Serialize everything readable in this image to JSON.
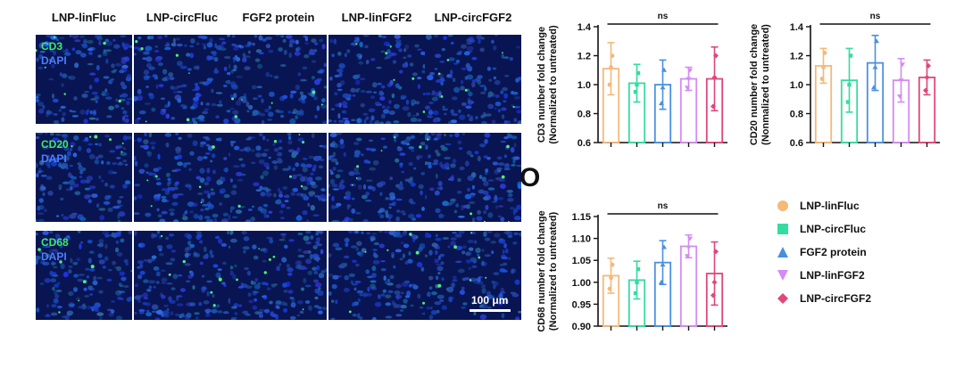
{
  "figure": {
    "columns": [
      "LNP-linFluc",
      "LNP-circFluc",
      "FGF2 protein",
      "LNP-linFGF2",
      "LNP-circFGF2"
    ],
    "rows": [
      {
        "marker": "CD3",
        "stain": "DAPI"
      },
      {
        "marker": "CD20",
        "stain": "DAPI"
      },
      {
        "marker": "CD68",
        "stain": "DAPI"
      }
    ],
    "scale_bar": "100 μm",
    "panel_letter": "O"
  },
  "colors": {
    "LNP-linFluc": "#f5b978",
    "LNP-circFluc": "#35dca0",
    "FGF2 protein": "#4a90e2",
    "LNP-linFGF2": "#d48cf0",
    "LNP-circFGF2": "#e0477a"
  },
  "chart_data": [
    {
      "type": "bar",
      "title": "",
      "ylabel": "CD3 number fold change (Normalized to untreated)",
      "xlabel": "",
      "categories": [
        "LNP-linFluc",
        "LNP-circFluc",
        "FGF2 protein",
        "LNP-linFGF2",
        "LNP-circFGF2"
      ],
      "values": [
        1.11,
        1.01,
        1.0,
        1.04,
        1.04
      ],
      "error": [
        0.18,
        0.13,
        0.17,
        0.08,
        0.22
      ],
      "points": [
        [
          1.0,
          1.12,
          1.2
        ],
        [
          0.95,
          1.0,
          1.08
        ],
        [
          0.87,
          0.98,
          1.1
        ],
        [
          0.98,
          1.04,
          1.1
        ],
        [
          0.85,
          1.05,
          1.2
        ]
      ],
      "ylim": [
        0.6,
        1.4
      ],
      "yticks": [
        "0.6",
        "0.8",
        "1.0",
        "1.2",
        "1.4"
      ],
      "significance": "ns"
    },
    {
      "type": "bar",
      "title": "",
      "ylabel": "CD20 number fold change (Nonmalized to untreated)",
      "xlabel": "",
      "categories": [
        "LNP-linFluc",
        "LNP-circFluc",
        "FGF2 protein",
        "LNP-linFGF2",
        "LNP-circFGF2"
      ],
      "values": [
        1.13,
        1.03,
        1.15,
        1.03,
        1.05
      ],
      "error": [
        0.12,
        0.22,
        0.19,
        0.15,
        0.12
      ],
      "points": [
        [
          1.04,
          1.12,
          1.22
        ],
        [
          0.88,
          1.0,
          1.2
        ],
        [
          0.98,
          1.12,
          1.3
        ],
        [
          0.92,
          1.03,
          1.14
        ],
        [
          0.96,
          1.05,
          1.13
        ]
      ],
      "ylim": [
        0.6,
        1.4
      ],
      "yticks": [
        "0.6",
        "0.8",
        "1.0",
        "1.2",
        "1.4"
      ],
      "significance": "ns"
    },
    {
      "type": "bar",
      "title": "",
      "ylabel": "CD68 number fold change (Normalized to untreated)",
      "xlabel": "",
      "categories": [
        "LNP-linFluc",
        "LNP-circFluc",
        "FGF2 protein",
        "LNP-linFGF2",
        "LNP-circFGF2"
      ],
      "values": [
        1.015,
        1.005,
        1.045,
        1.082,
        1.02
      ],
      "error": [
        0.04,
        0.043,
        0.05,
        0.026,
        0.072
      ],
      "points": [
        [
          0.985,
          1.01,
          1.04
        ],
        [
          0.975,
          1.0,
          1.03
        ],
        [
          1.0,
          1.04,
          1.08
        ],
        [
          1.06,
          1.08,
          1.1
        ],
        [
          0.97,
          1.0,
          1.07
        ]
      ],
      "ylim": [
        0.9,
        1.15
      ],
      "yticks": [
        "0.90",
        "0.95",
        "1.00",
        "1.05",
        "1.10",
        "1.15"
      ],
      "significance": "ns"
    }
  ],
  "legend": [
    {
      "label": "LNP-linFluc",
      "shape": "circle"
    },
    {
      "label": "LNP-circFluc",
      "shape": "square"
    },
    {
      "label": "FGF2 protein",
      "shape": "triangle-up"
    },
    {
      "label": "LNP-linFGF2",
      "shape": "triangle-down"
    },
    {
      "label": "LNP-circFGF2",
      "shape": "diamond"
    }
  ]
}
